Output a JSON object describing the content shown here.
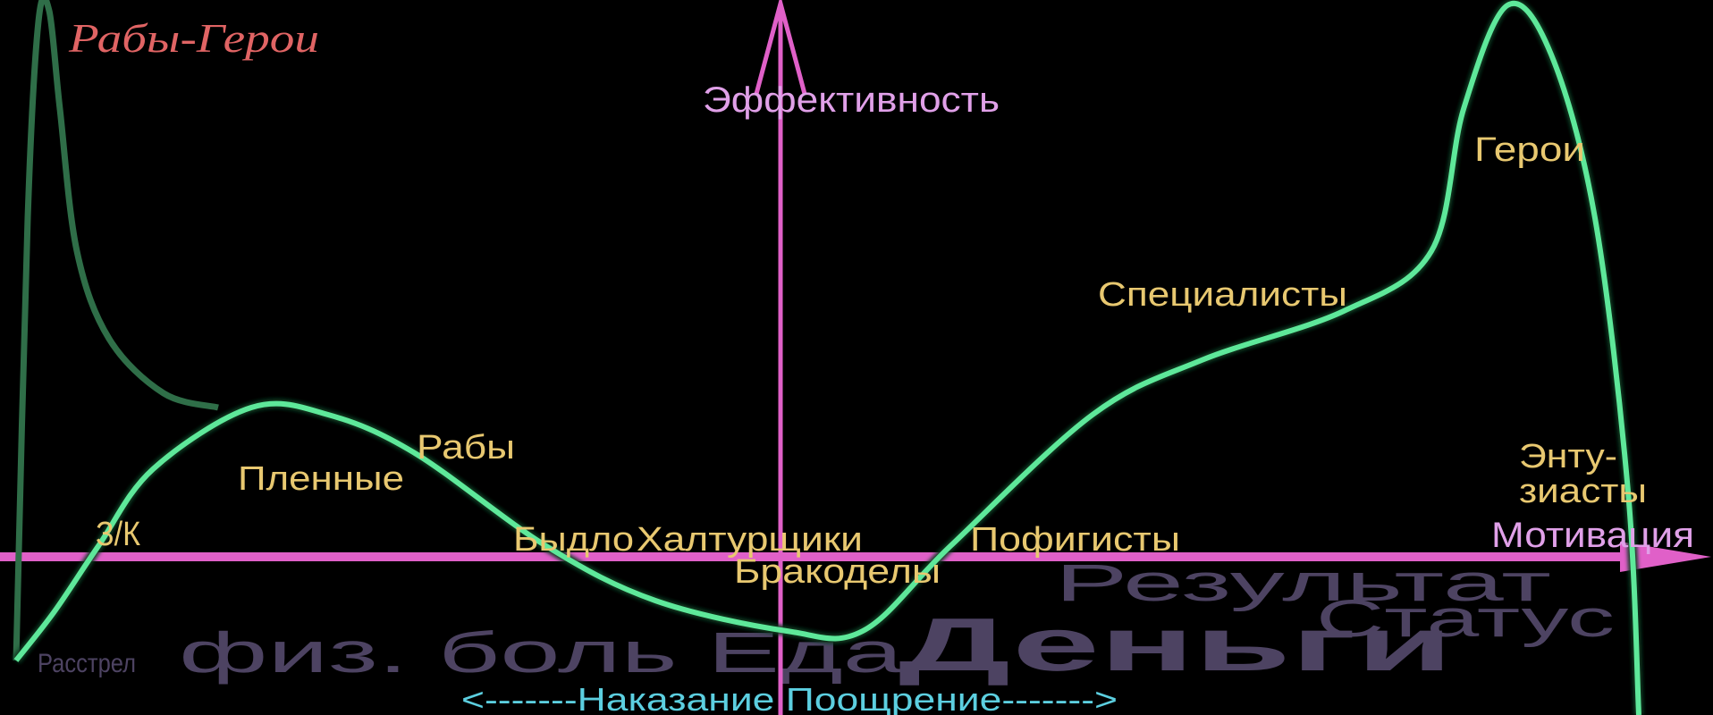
{
  "colors": {
    "background": "#000000",
    "axis": "#e060c8",
    "main_curve": "#5ee89a",
    "slave_hero_curve": "#2f6e48",
    "group_labels": "#e8c870",
    "axis_labels": "#e0a0e8",
    "stimulus_labels": "#4d4362",
    "punishment_reward": "#5ccfe0",
    "slave_heroes_title": "#e06464"
  },
  "title": "Рабы-Герои",
  "axes": {
    "y_label": "Эффективность",
    "x_label": "Мотивация",
    "bottom_scale": "<-------Наказание Поощрение------->"
  },
  "groups": [
    "З/К",
    "Пленные",
    "Рабы",
    "Быдло",
    "Халтурщики",
    "Бракоделы",
    "Пофигисты",
    "Специалисты",
    "Герои",
    "Энту-",
    "зиасты"
  ],
  "stimuli": {
    "execution": "Расстрел",
    "pain_food": "физ. боль Еда",
    "money": "Деньги",
    "status": "Статус",
    "result": "Результат"
  }
}
